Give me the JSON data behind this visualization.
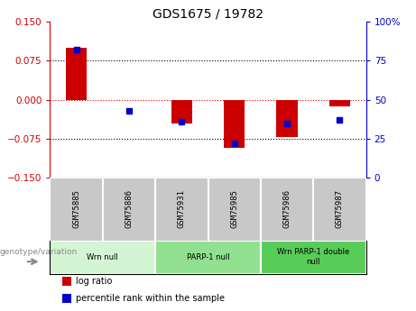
{
  "title": "GDS1675 / 19782",
  "samples": [
    "GSM75885",
    "GSM75886",
    "GSM75931",
    "GSM75985",
    "GSM75986",
    "GSM75987"
  ],
  "log_ratios": [
    0.1,
    0.0,
    -0.045,
    -0.092,
    -0.072,
    -0.012
  ],
  "percentile_ranks": [
    82,
    43,
    36,
    22,
    35,
    37
  ],
  "groups": [
    {
      "label": "Wrn null",
      "start": 0,
      "end": 2,
      "color": "#d4f5d4"
    },
    {
      "label": "PARP-1 null",
      "start": 2,
      "end": 4,
      "color": "#90e090"
    },
    {
      "label": "Wrn PARP-1 double\nnull",
      "start": 4,
      "end": 6,
      "color": "#58cc58"
    }
  ],
  "ylim": [
    -0.15,
    0.15
  ],
  "yticks_left": [
    -0.15,
    -0.075,
    0,
    0.075,
    0.15
  ],
  "yticks_right": [
    0,
    25,
    50,
    75,
    100
  ],
  "bar_color_red": "#cc0000",
  "bar_color_blue": "#0000cc",
  "zero_line_color": "#cc0000",
  "dotted_line_color": "#000000",
  "background_plot": "#ffffff",
  "background_sample": "#c8c8c8",
  "genotype_label": "genotype/variation",
  "legend_items": [
    {
      "label": "log ratio",
      "color": "#cc0000"
    },
    {
      "label": "percentile rank within the sample",
      "color": "#0000cc"
    }
  ]
}
